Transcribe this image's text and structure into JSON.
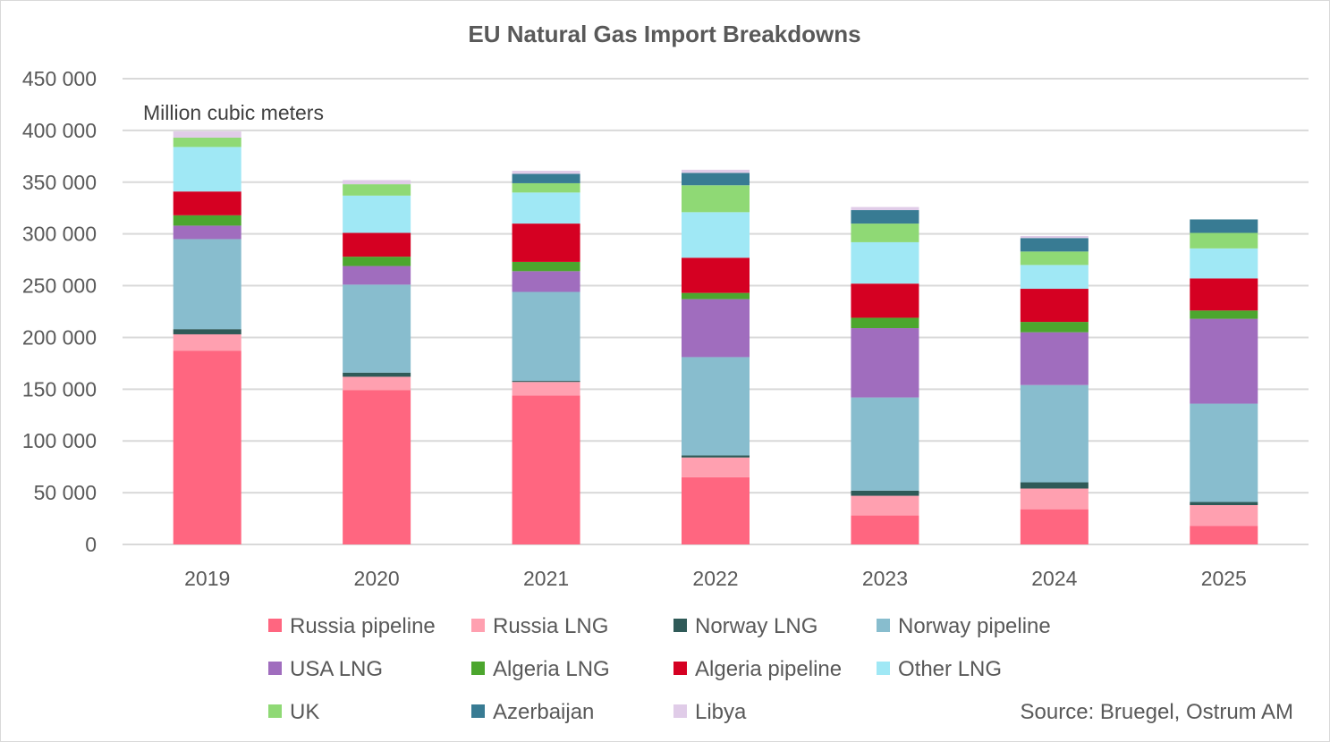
{
  "chart_data": {
    "type": "bar",
    "stacked": true,
    "title": "EU Natural Gas Import Breakdowns",
    "unit_label": "Million cubic meters",
    "source": "Source: Bruegel, Ostrum AM",
    "ylim": [
      0,
      450000
    ],
    "yticks": [
      0,
      50000,
      100000,
      150000,
      200000,
      250000,
      300000,
      350000,
      400000,
      450000
    ],
    "ytick_labels": [
      "0",
      "50 000",
      "100 000",
      "150 000",
      "200 000",
      "250 000",
      "300 000",
      "350 000",
      "400 000",
      "450 000"
    ],
    "grid": true,
    "legend_position": "bottom",
    "categories": [
      "2019",
      "2020",
      "2021",
      "2022",
      "2023",
      "2024",
      "2025"
    ],
    "series": [
      {
        "name": "Russia pipeline",
        "color": "#FF6680",
        "values": [
          187000,
          149000,
          144000,
          65000,
          28000,
          34000,
          18000
        ]
      },
      {
        "name": "Russia LNG",
        "color": "#FFA0B0",
        "values": [
          16000,
          13000,
          13000,
          19000,
          19000,
          20000,
          20000
        ]
      },
      {
        "name": "Norway LNG",
        "color": "#2F5A58",
        "values": [
          5000,
          4000,
          1000,
          2000,
          5000,
          6000,
          3000
        ]
      },
      {
        "name": "Norway pipeline",
        "color": "#88BDCE",
        "values": [
          87000,
          85000,
          86000,
          95000,
          90000,
          94000,
          95000
        ]
      },
      {
        "name": "USA LNG",
        "color": "#A06DBE",
        "values": [
          13000,
          18000,
          20000,
          56000,
          67000,
          51000,
          82000
        ]
      },
      {
        "name": "Algeria LNG",
        "color": "#4CA62E",
        "values": [
          10000,
          9000,
          9000,
          6000,
          10000,
          10000,
          8000
        ]
      },
      {
        "name": "Algeria pipeline",
        "color": "#D50022",
        "values": [
          23000,
          23000,
          37000,
          34000,
          33000,
          32000,
          31000
        ]
      },
      {
        "name": "Other LNG",
        "color": "#A0E8F5",
        "values": [
          43000,
          36000,
          30000,
          44000,
          40000,
          23000,
          29000
        ]
      },
      {
        "name": "UK",
        "color": "#8FD975",
        "values": [
          9000,
          11000,
          9000,
          26000,
          18000,
          13000,
          15000
        ]
      },
      {
        "name": "Azerbaijan",
        "color": "#387B93",
        "values": [
          0,
          0,
          9000,
          12000,
          13000,
          13000,
          13000
        ]
      },
      {
        "name": "Libya",
        "color": "#E0CCE8",
        "values": [
          6000,
          4000,
          3000,
          3000,
          3000,
          2000,
          0
        ]
      }
    ]
  }
}
